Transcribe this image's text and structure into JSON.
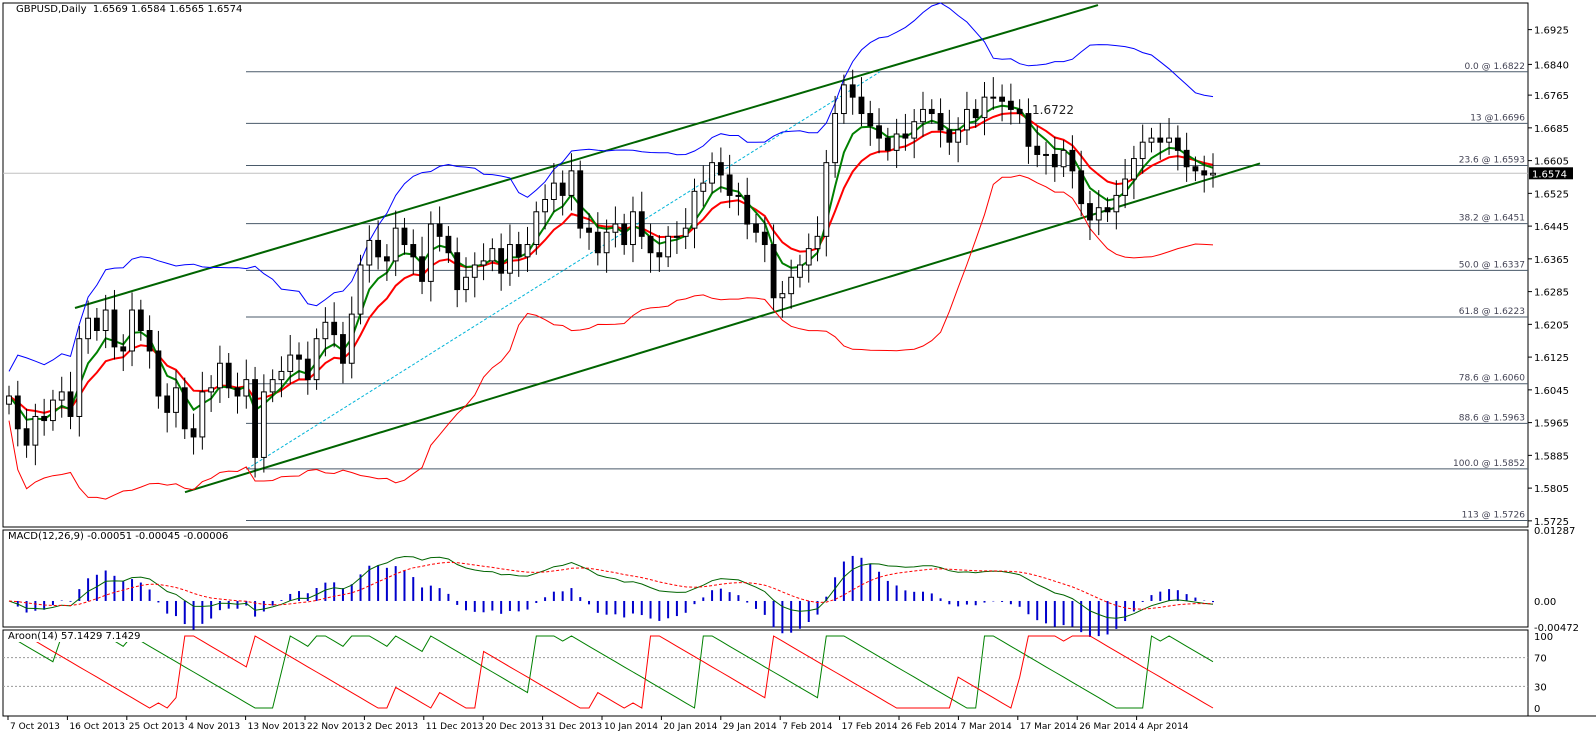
{
  "header": {
    "symbol": "GBPUSD,Daily",
    "ohlc": "1.6569 1.6584 1.6565 1.6574",
    "macd_label": "MACD(12,26,9) -0.00051 -0.00045 -0.00006",
    "aroon_label": "Aroon(14) 57.1429 7.1429",
    "annotation": "1.6722"
  },
  "colors": {
    "up_candle": "#ffffff",
    "down_candle": "#000000",
    "channel": "#006400",
    "bollinger_upper": "#0000ff",
    "bollinger_lower": "#ff0000",
    "ma_fast": "#008000",
    "ma_slow": "#ff0000",
    "ma_flat": "#ffff00",
    "fib_line": "#4a5a6a",
    "macd_hist": "#0000cc",
    "macd_main": "#006400",
    "macd_signal": "#ff0000",
    "aroon_up": "#008000",
    "aroon_down": "#ff0000",
    "price_tag_bg": "#000000",
    "price_tag_text": "#ffffff"
  },
  "chart_data": {
    "type": "candlestick",
    "symbol": "GBPUSD",
    "timeframe": "Daily",
    "ylim": [
      1.571,
      1.699
    ],
    "price_ticks": [
      "1.6925",
      "1.6840",
      "1.6765",
      "1.6685",
      "1.6605",
      "1.6525",
      "1.6445",
      "1.6365",
      "1.6285",
      "1.6205",
      "1.6125",
      "1.6045",
      "1.5965",
      "1.5885",
      "1.5805",
      "1.5725"
    ],
    "current_price": "1.6574",
    "x_labels": [
      "7 Oct 2013",
      "16 Oct 2013",
      "25 Oct 2013",
      "4 Nov 2013",
      "13 Nov 2013",
      "22 Nov 2013",
      "2 Dec 2013",
      "11 Dec 2013",
      "20 Dec 2013",
      "31 Dec 2013",
      "10 Jan 2014",
      "20 Jan 2014",
      "29 Jan 2014",
      "7 Feb 2014",
      "17 Feb 2014",
      "26 Feb 2014",
      "7 Mar 2014",
      "17 Mar 2014",
      "26 Mar 2014",
      "4 Apr 2014"
    ],
    "fib_levels": [
      {
        "label": "0.0 @ 1.6822",
        "value": 1.6822
      },
      {
        "label": "13 @1.6696",
        "value": 1.6696
      },
      {
        "label": "23.6 @ 1.6593",
        "value": 1.6593
      },
      {
        "label": "38.2 @ 1.6451",
        "value": 1.6451
      },
      {
        "label": "50.0 @ 1.6337",
        "value": 1.6337
      },
      {
        "label": "61.8 @ 1.6223",
        "value": 1.6223
      },
      {
        "label": "78.6 @ 1.6060",
        "value": 1.606
      },
      {
        "label": "88.6 @ 1.5963",
        "value": 1.5963
      },
      {
        "label": "100.0 @ 1.5852",
        "value": 1.5852
      },
      {
        "label": "113 @ 1.5726",
        "value": 1.5726
      }
    ],
    "closes": [
      1.603,
      1.595,
      1.591,
      1.598,
      1.597,
      1.602,
      1.604,
      1.598,
      1.617,
      1.622,
      1.619,
      1.624,
      1.615,
      1.614,
      1.624,
      1.619,
      1.614,
      1.603,
      1.599,
      1.605,
      1.595,
      1.593,
      1.604,
      1.605,
      1.611,
      1.605,
      1.603,
      1.607,
      1.588,
      1.604,
      1.607,
      1.609,
      1.613,
      1.612,
      1.607,
      1.617,
      1.621,
      1.618,
      1.611,
      1.623,
      1.635,
      1.641,
      1.637,
      1.636,
      1.644,
      1.64,
      1.637,
      1.631,
      1.645,
      1.642,
      1.638,
      1.629,
      1.632,
      1.635,
      1.636,
      1.639,
      1.633,
      1.64,
      1.637,
      1.64,
      1.648,
      1.651,
      1.655,
      1.652,
      1.658,
      1.644,
      1.643,
      1.638,
      1.643,
      1.645,
      1.64,
      1.648,
      1.642,
      1.638,
      1.637,
      1.642,
      1.642,
      1.644,
      1.653,
      1.655,
      1.66,
      1.657,
      1.652,
      1.652,
      1.645,
      1.643,
      1.64,
      1.627,
      1.628,
      1.632,
      1.635,
      1.639,
      1.642,
      1.66,
      1.672,
      1.679,
      1.676,
      1.672,
      1.669,
      1.666,
      1.663,
      1.667,
      1.666,
      1.67,
      1.673,
      1.672,
      1.668,
      1.665,
      1.668,
      1.673,
      1.671,
      1.676,
      1.676,
      1.675,
      1.673,
      1.672,
      1.664,
      1.662,
      1.662,
      1.659,
      1.663,
      1.658,
      1.65,
      1.646,
      1.649,
      1.648,
      1.652,
      1.656,
      1.661,
      1.665,
      1.666,
      1.665,
      1.666,
      1.663,
      1.659,
      1.658,
      1.657,
      1.6574
    ],
    "macd": {
      "ylim": [
        -0.00472,
        0.01287
      ],
      "ticks": [
        "0.01287",
        "0.00",
        "-0.00472"
      ]
    },
    "aroon": {
      "ylim": [
        0,
        100
      ],
      "ticks": [
        "100",
        "70",
        "30",
        "0"
      ],
      "period": 14
    }
  }
}
